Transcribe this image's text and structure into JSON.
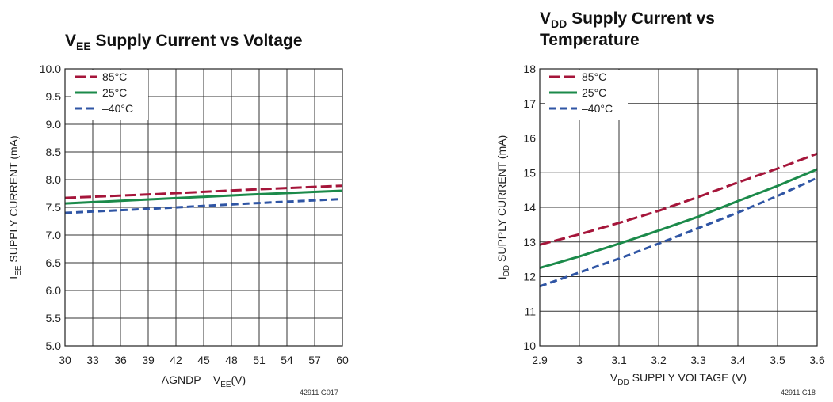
{
  "chart_data": [
    {
      "type": "line",
      "title_main": "V",
      "title_sub": "EE",
      "title_rest": " Supply Current vs Voltage",
      "xlabel_main": "AGNDP – V",
      "xlabel_sub": "EE",
      "xlabel_rest": "(V)",
      "ylabel_main": "I",
      "ylabel_sub": "EE",
      "ylabel_rest": " SUPPLY CURRENT (mA)",
      "xlim": [
        30,
        60
      ],
      "ylim": [
        5.0,
        10.0
      ],
      "x_ticks": [
        30,
        33,
        36,
        39,
        42,
        45,
        48,
        51,
        54,
        57,
        60
      ],
      "x_tick_labels": [
        "30",
        "33",
        "36",
        "39",
        "42",
        "45",
        "48",
        "51",
        "54",
        "57",
        "60"
      ],
      "y_ticks": [
        5.0,
        5.5,
        6.0,
        6.5,
        7.0,
        7.5,
        8.0,
        8.5,
        9.0,
        9.5,
        10.0
      ],
      "y_tick_labels": [
        "5.0",
        "5.5",
        "6.0",
        "6.5",
        "7.0",
        "7.5",
        "8.0",
        "8.5",
        "9.0",
        "9.5",
        "10.0"
      ],
      "grid": true,
      "legend_position": "top-left",
      "series": [
        {
          "name": "85°C",
          "color": "#a5153a",
          "dash": "long-dash",
          "x": [
            30,
            40,
            50,
            60
          ],
          "y": [
            7.67,
            7.74,
            7.82,
            7.89
          ]
        },
        {
          "name": "25°C",
          "color": "#1b8a4a",
          "dash": "solid",
          "x": [
            30,
            40,
            50,
            60
          ],
          "y": [
            7.57,
            7.65,
            7.73,
            7.8
          ]
        },
        {
          "name": "–40°C",
          "color": "#2f55a4",
          "dash": "dash",
          "x": [
            30,
            40,
            50,
            60
          ],
          "y": [
            7.4,
            7.48,
            7.57,
            7.65
          ]
        }
      ],
      "figure_id": "42911 G017"
    },
    {
      "type": "line",
      "title_line1_main": "V",
      "title_line1_sub": "DD",
      "title_line1_rest": " Supply Current vs",
      "title_line2": "Temperature",
      "xlabel_main": "V",
      "xlabel_sub": "DD",
      "xlabel_rest": " SUPPLY VOLTAGE (V)",
      "ylabel_main": "I",
      "ylabel_sub": "DD",
      "ylabel_rest": " SUPPLY CURRENT (mA)",
      "xlim": [
        2.9,
        3.6
      ],
      "ylim": [
        10,
        18
      ],
      "x_ticks": [
        2.9,
        3.0,
        3.1,
        3.2,
        3.3,
        3.4,
        3.5,
        3.6
      ],
      "x_tick_labels": [
        "2.9",
        "3",
        "3.1",
        "3.2",
        "3.3",
        "3.4",
        "3.5",
        "3.6"
      ],
      "y_ticks": [
        10,
        11,
        12,
        13,
        14,
        15,
        16,
        17,
        18
      ],
      "y_tick_labels": [
        "10",
        "11",
        "12",
        "13",
        "14",
        "15",
        "16",
        "17",
        "18"
      ],
      "grid": true,
      "legend_position": "top-left",
      "series": [
        {
          "name": "85°C",
          "color": "#a5153a",
          "dash": "long-dash",
          "x": [
            2.9,
            3.0,
            3.1,
            3.2,
            3.3,
            3.4,
            3.5,
            3.6
          ],
          "y": [
            12.92,
            13.22,
            13.55,
            13.9,
            14.3,
            14.72,
            15.12,
            15.55
          ]
        },
        {
          "name": "25°C",
          "color": "#1b8a4a",
          "dash": "solid",
          "x": [
            2.9,
            3.0,
            3.1,
            3.2,
            3.3,
            3.4,
            3.5,
            3.6
          ],
          "y": [
            12.25,
            12.58,
            12.95,
            13.33,
            13.73,
            14.18,
            14.62,
            15.1
          ]
        },
        {
          "name": "–40°C",
          "color": "#2f55a4",
          "dash": "dash",
          "x": [
            2.9,
            3.0,
            3.1,
            3.2,
            3.3,
            3.4,
            3.5,
            3.6
          ],
          "y": [
            11.72,
            12.12,
            12.52,
            12.95,
            13.4,
            13.85,
            14.33,
            14.85
          ]
        }
      ],
      "figure_id": "42911 G18"
    }
  ]
}
